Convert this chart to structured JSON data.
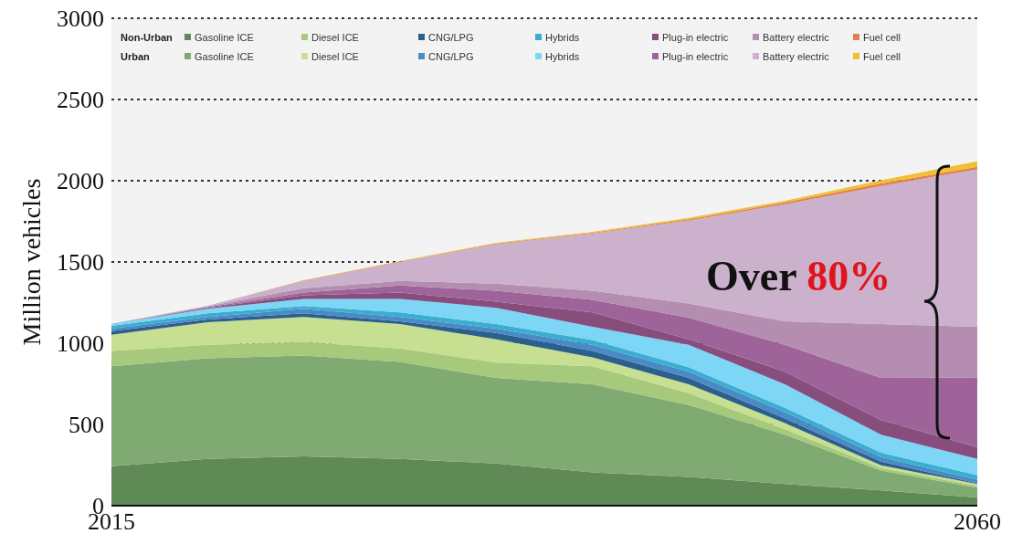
{
  "chart_data": {
    "type": "area",
    "stacked": true,
    "ylabel": "Million vehicles",
    "x": [
      2015,
      2020,
      2025,
      2030,
      2035,
      2040,
      2045,
      2050,
      2055,
      2060
    ],
    "xlim": [
      2015,
      2060
    ],
    "xticks": [
      2015,
      2060
    ],
    "ylim": [
      0,
      3000
    ],
    "yticks": [
      0,
      500,
      1000,
      1500,
      2000,
      2500,
      3000
    ],
    "grid": "y",
    "legend": "top",
    "annotations": [
      "Non-Urban",
      "Urban",
      "Over 80%"
    ],
    "series": [
      {
        "name": "Gasoline ICE",
        "color": "#5f8a56",
        "values": [
          243,
          288,
          304,
          288,
          260,
          205,
          177,
          133,
          94,
          50
        ]
      },
      {
        "name": "Gasoline ICE",
        "color": "#7fab73",
        "values": [
          615,
          619,
          620,
          597,
          526,
          542,
          443,
          304,
          122,
          61
        ]
      },
      {
        "name": "Diesel ICE",
        "color": "#a6c97c",
        "values": [
          94,
          83,
          83,
          83,
          94,
          111,
          72,
          33,
          16,
          11
        ]
      },
      {
        "name": "Diesel ICE",
        "color": "#c6df90",
        "values": [
          100,
          139,
          155,
          150,
          144,
          55,
          55,
          39,
          17,
          11
        ]
      },
      {
        "name": "CNG/LPG",
        "color": "#2b5f8c",
        "values": [
          22,
          17,
          22,
          17,
          39,
          39,
          39,
          28,
          22,
          5
        ]
      },
      {
        "name": "CNG/LPG",
        "color": "#4a8ac6",
        "values": [
          16,
          16,
          28,
          27,
          27,
          38,
          39,
          39,
          28,
          22
        ]
      },
      {
        "name": "Hybrids",
        "color": "#3aaed0",
        "values": [
          17,
          22,
          17,
          28,
          28,
          30,
          27,
          27,
          27,
          28
        ]
      },
      {
        "name": "Hybrids",
        "color": "#7dd6f5",
        "values": [
          11,
          28,
          44,
          83,
          100,
          81,
          138,
          144,
          111,
          100
        ]
      },
      {
        "name": "Plug-in electric",
        "color": "#874d7c",
        "values": [
          0,
          5,
          22,
          39,
          38,
          89,
          34,
          78,
          89,
          72
        ]
      },
      {
        "name": "Plug-in electric",
        "color": "#9e6499",
        "values": [
          0,
          5,
          17,
          44,
          67,
          77,
          133,
          165,
          260,
          430
        ]
      },
      {
        "name": "Battery electric",
        "color": "#b48db0",
        "values": [
          0,
          5,
          27,
          28,
          44,
          56,
          88,
          145,
          332,
          311
        ]
      },
      {
        "name": "Battery electric",
        "color": "#cbb1cc",
        "values": [
          2,
          3,
          45,
          116,
          243,
          352,
          510,
          721,
          850,
          969
        ]
      },
      {
        "name": "Fuel cell",
        "color": "#e0804f",
        "values": [
          0,
          0,
          2,
          3,
          4,
          5,
          7,
          10,
          15,
          15
        ]
      },
      {
        "name": "Fuel cell",
        "color": "#f0c030",
        "values": [
          0,
          0,
          2,
          3,
          4,
          5,
          9,
          10,
          20,
          35
        ]
      }
    ]
  }
}
